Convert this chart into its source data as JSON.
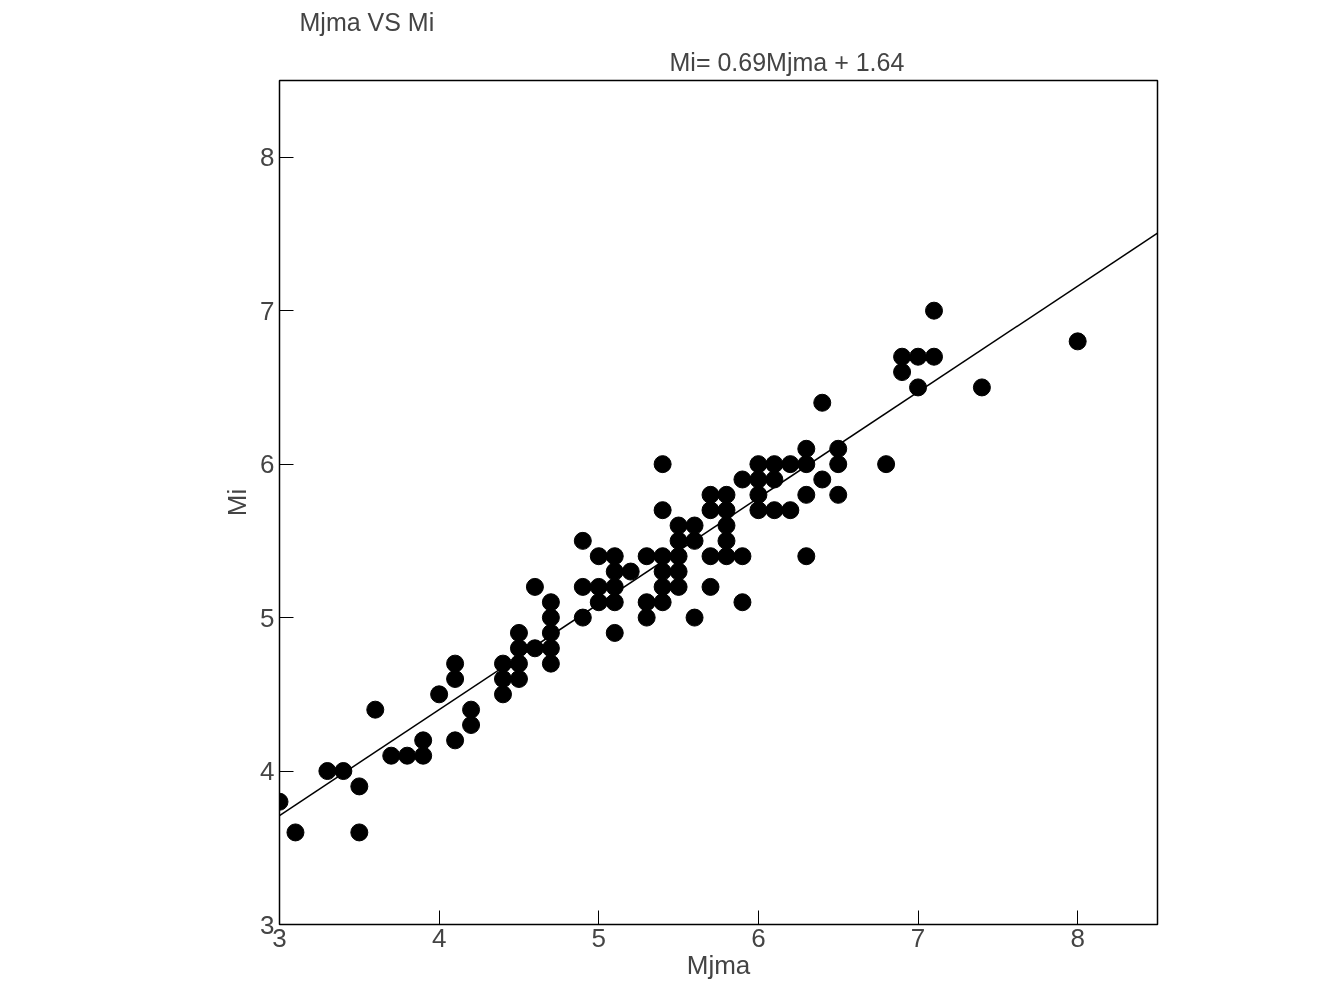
{
  "chart_data": {
    "type": "scatter",
    "title": "Mjma VS Mi",
    "xlabel": "Mjma",
    "ylabel": "Mi",
    "annotations": [
      "Mi= 0.69Mjma + 1.64"
    ],
    "xlim": [
      3,
      8.5
    ],
    "ylim": [
      3,
      8.5
    ],
    "xticks": [
      3,
      4,
      5,
      6,
      7,
      8
    ],
    "yticks": [
      3,
      4,
      5,
      6,
      7,
      8
    ],
    "grid": false,
    "series": [
      {
        "color": "#000000",
        "marker": "circle",
        "x": [
          3.0,
          3.1,
          3.3,
          3.4,
          3.5,
          3.5,
          3.6,
          3.7,
          3.8,
          3.9,
          3.9,
          4.0,
          4.1,
          4.1,
          4.1,
          4.2,
          4.2,
          4.4,
          4.4,
          4.4,
          4.5,
          4.5,
          4.5,
          4.5,
          4.6,
          4.6,
          4.7,
          4.7,
          4.7,
          4.7,
          4.7,
          4.9,
          4.9,
          4.9,
          5.0,
          5.0,
          5.0,
          5.1,
          5.1,
          5.1,
          5.1,
          5.1,
          5.2,
          5.3,
          5.3,
          5.3,
          5.4,
          5.4,
          5.4,
          5.4,
          5.4,
          5.4,
          5.5,
          5.5,
          5.5,
          5.5,
          5.5,
          5.6,
          5.6,
          5.6,
          5.7,
          5.7,
          5.7,
          5.7,
          5.8,
          5.8,
          5.8,
          5.8,
          5.8,
          5.9,
          5.9,
          5.9,
          6.0,
          6.0,
          6.0,
          6.0,
          6.1,
          6.1,
          6.1,
          6.2,
          6.2,
          6.3,
          6.3,
          6.3,
          6.3,
          6.4,
          6.4,
          6.5,
          6.5,
          6.5,
          6.8,
          6.9,
          6.9,
          7.0,
          7.0,
          7.1,
          7.1,
          7.4,
          8.0
        ],
        "values": [
          3.8,
          3.6,
          4.0,
          4.0,
          3.9,
          3.6,
          4.4,
          4.1,
          4.1,
          4.1,
          4.2,
          4.5,
          4.2,
          4.6,
          4.7,
          4.3,
          4.4,
          4.5,
          4.6,
          4.7,
          4.6,
          4.7,
          4.8,
          4.9,
          4.8,
          5.2,
          4.7,
          4.8,
          4.9,
          5.0,
          5.1,
          5.0,
          5.2,
          5.5,
          5.1,
          5.2,
          5.4,
          4.9,
          5.1,
          5.2,
          5.3,
          5.4,
          5.3,
          5.0,
          5.1,
          5.4,
          5.1,
          5.2,
          5.3,
          5.4,
          5.7,
          6.0,
          5.2,
          5.3,
          5.4,
          5.5,
          5.6,
          5.0,
          5.5,
          5.6,
          5.2,
          5.4,
          5.7,
          5.8,
          5.4,
          5.5,
          5.6,
          5.7,
          5.8,
          5.1,
          5.4,
          5.9,
          5.7,
          5.8,
          5.9,
          6.0,
          5.7,
          5.9,
          6.0,
          5.7,
          6.0,
          5.4,
          5.8,
          6.0,
          6.1,
          5.9,
          6.4,
          5.8,
          6.0,
          6.1,
          6.0,
          6.6,
          6.7,
          6.5,
          6.7,
          6.7,
          7.0,
          6.5,
          6.8
        ]
      },
      {
        "type": "line",
        "color": "#000000",
        "x": [
          3,
          8.5
        ],
        "values": [
          3.71,
          7.505
        ]
      }
    ]
  }
}
